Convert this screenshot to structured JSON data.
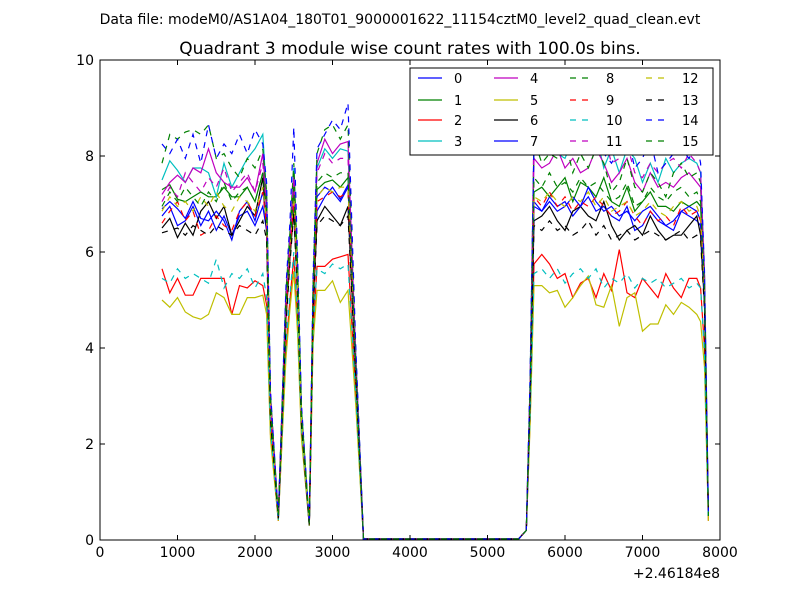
{
  "suptitle": "Data file: modeM0/AS1A04_180T01_9000001622_11154cztM0_level2_quad_clean.evt",
  "chart_data": {
    "type": "line",
    "title": "Quadrant 3 module wise count rates with 100.0s bins.",
    "xlabel": "",
    "ylabel": "",
    "x_offset_label": "+2.46184e8",
    "xlim": [
      0,
      8000
    ],
    "ylim": [
      0,
      10
    ],
    "x_ticks": [
      0,
      1000,
      2000,
      3000,
      4000,
      5000,
      6000,
      7000,
      8000
    ],
    "y_ticks": [
      0,
      2,
      4,
      6,
      8,
      10
    ],
    "grid": false,
    "legend_placement": "top-right",
    "legend_columns": 4,
    "x": [
      800,
      900,
      1000,
      1100,
      1200,
      1300,
      1400,
      1500,
      1600,
      1700,
      1800,
      1900,
      2000,
      2100,
      2150,
      2200,
      2300,
      2400,
      2450,
      2500,
      2550,
      2600,
      2700,
      2750,
      2800,
      2900,
      3000,
      3100,
      3200,
      3300,
      3400,
      5400,
      5500,
      5550,
      5600,
      5700,
      5800,
      5900,
      6000,
      6100,
      6200,
      6300,
      6400,
      6500,
      6600,
      6700,
      6800,
      6900,
      7000,
      7100,
      7200,
      7300,
      7400,
      7500,
      7600,
      7700,
      7750,
      7800,
      7850
    ],
    "series": [
      {
        "name": "0",
        "color": "#0000ff",
        "dash": "solid",
        "values": [
          6.75,
          6.95,
          6.55,
          6.65,
          6.95,
          6.55,
          6.85,
          6.45,
          6.75,
          6.35,
          6.75,
          6.85,
          6.55,
          6.95,
          6.45,
          2.6,
          0.45,
          4.7,
          5.95,
          7.1,
          5.25,
          2.5,
          0.3,
          4.9,
          6.85,
          7.15,
          7.35,
          7.1,
          7.4,
          3.5,
          0.02,
          0.02,
          0.2,
          3.0,
          6.95,
          6.85,
          7.15,
          6.95,
          7.05,
          6.75,
          6.95,
          7.15,
          6.85,
          6.95,
          6.75,
          6.65,
          6.95,
          6.45,
          6.55,
          6.85,
          6.65,
          6.55,
          6.45,
          6.85,
          6.75,
          6.65,
          6.55,
          5.0,
          0.5
        ]
      },
      {
        "name": "1",
        "color": "#008000",
        "dash": "solid",
        "values": [
          7.3,
          7.4,
          7.1,
          7.05,
          7.15,
          7.25,
          7.15,
          7.15,
          7.35,
          7.15,
          7.15,
          7.35,
          7.05,
          7.65,
          6.95,
          2.7,
          0.5,
          4.9,
          6.1,
          7.3,
          5.5,
          2.6,
          0.35,
          5.1,
          7.3,
          7.45,
          7.5,
          7.35,
          7.55,
          3.6,
          0.02,
          0.02,
          0.2,
          3.1,
          7.25,
          7.35,
          7.15,
          7.35,
          7.55,
          7.05,
          7.45,
          7.35,
          7.15,
          7.55,
          7.05,
          6.95,
          7.35,
          6.85,
          7.05,
          7.25,
          6.95,
          6.95,
          6.85,
          7.05,
          6.95,
          7.05,
          6.95,
          5.1,
          0.5
        ]
      },
      {
        "name": "2",
        "color": "#ff0000",
        "dash": "solid",
        "values": [
          5.65,
          5.15,
          5.45,
          5.1,
          5.1,
          5.45,
          5.45,
          5.45,
          5.45,
          4.7,
          5.3,
          5.25,
          5.4,
          5.3,
          4.9,
          2.2,
          0.4,
          4.0,
          5.0,
          5.9,
          4.5,
          2.2,
          0.3,
          4.3,
          5.7,
          5.7,
          5.85,
          5.9,
          5.95,
          3.0,
          0.02,
          0.02,
          0.2,
          2.5,
          5.75,
          5.95,
          5.75,
          5.45,
          5.55,
          5.05,
          5.35,
          5.45,
          5.05,
          5.55,
          5.2,
          6.05,
          5.15,
          5.05,
          5.45,
          5.25,
          5.05,
          5.55,
          5.25,
          5.05,
          5.45,
          5.45,
          5.25,
          4.0,
          0.4
        ]
      },
      {
        "name": "3",
        "color": "#00bfbf",
        "dash": "solid",
        "values": [
          7.5,
          7.9,
          7.7,
          7.45,
          7.75,
          7.75,
          7.65,
          7.15,
          7.85,
          7.35,
          7.65,
          7.95,
          8.15,
          8.45,
          7.15,
          3.0,
          0.5,
          5.1,
          6.3,
          7.75,
          5.6,
          2.7,
          0.35,
          5.3,
          7.75,
          8.15,
          7.95,
          8.15,
          8.1,
          3.8,
          0.02,
          0.02,
          0.2,
          3.3,
          8.35,
          8.55,
          8.25,
          8.05,
          7.95,
          8.35,
          8.15,
          8.35,
          8.45,
          7.75,
          8.15,
          7.65,
          8.15,
          7.95,
          7.45,
          7.85,
          7.45,
          7.95,
          7.65,
          7.85,
          7.95,
          7.85,
          7.65,
          5.5,
          0.6
        ]
      },
      {
        "name": "4",
        "color": "#bf00bf",
        "dash": "solid",
        "values": [
          7.2,
          7.45,
          7.6,
          7.45,
          7.75,
          7.65,
          8.15,
          7.65,
          7.45,
          7.35,
          7.35,
          7.55,
          7.25,
          8.05,
          6.95,
          3.0,
          0.5,
          5.0,
          6.2,
          7.6,
          5.5,
          2.6,
          0.35,
          5.2,
          7.85,
          8.35,
          8.05,
          8.25,
          8.3,
          3.8,
          0.02,
          0.02,
          0.2,
          3.2,
          7.95,
          7.75,
          7.85,
          8.15,
          7.75,
          7.95,
          7.65,
          7.75,
          8.15,
          7.85,
          7.45,
          7.65,
          7.95,
          7.45,
          7.25,
          7.65,
          7.35,
          7.45,
          7.35,
          7.55,
          7.65,
          7.45,
          7.35,
          5.3,
          0.5
        ]
      },
      {
        "name": "5",
        "color": "#bfbf00",
        "dash": "solid",
        "values": [
          5.0,
          4.85,
          5.05,
          4.75,
          4.65,
          4.6,
          4.7,
          5.15,
          5.05,
          4.7,
          4.7,
          5.05,
          5.05,
          5.1,
          4.7,
          2.1,
          0.4,
          3.8,
          4.8,
          5.6,
          4.3,
          2.1,
          0.3,
          4.1,
          5.2,
          5.2,
          5.4,
          4.95,
          5.2,
          2.8,
          0.02,
          0.02,
          0.2,
          2.4,
          5.3,
          5.3,
          5.15,
          5.2,
          4.85,
          5.05,
          5.3,
          5.5,
          4.9,
          4.85,
          5.3,
          4.45,
          5.05,
          5.15,
          4.35,
          4.5,
          4.5,
          4.9,
          4.7,
          4.95,
          4.85,
          4.7,
          4.55,
          3.6,
          0.4
        ]
      },
      {
        "name": "6",
        "color": "#000000",
        "dash": "solid",
        "values": [
          6.5,
          6.7,
          6.3,
          6.6,
          6.35,
          6.85,
          7.05,
          6.7,
          6.95,
          6.35,
          6.65,
          6.95,
          6.75,
          7.55,
          6.45,
          2.6,
          0.45,
          4.6,
          5.85,
          6.9,
          5.15,
          2.4,
          0.3,
          4.8,
          6.65,
          6.95,
          6.75,
          6.55,
          6.95,
          3.4,
          0.02,
          0.02,
          0.2,
          2.9,
          6.65,
          6.75,
          6.95,
          6.65,
          6.45,
          6.85,
          6.95,
          6.75,
          6.65,
          7.05,
          6.55,
          6.25,
          6.45,
          6.55,
          6.35,
          6.75,
          6.45,
          6.25,
          6.35,
          6.35,
          6.55,
          6.75,
          6.35,
          4.9,
          0.5
        ]
      },
      {
        "name": "7",
        "color": "#0000ff",
        "dash": "solid",
        "values": [
          6.9,
          7.05,
          6.9,
          6.7,
          7.05,
          6.7,
          6.65,
          6.85,
          6.65,
          6.25,
          6.85,
          7.05,
          6.65,
          7.25,
          6.65,
          2.7,
          0.45,
          4.8,
          6.0,
          7.1,
          5.3,
          2.5,
          0.3,
          5.0,
          7.15,
          7.35,
          7.25,
          7.05,
          7.35,
          3.5,
          0.02,
          0.02,
          0.2,
          3.0,
          7.05,
          6.85,
          7.05,
          6.85,
          6.95,
          7.15,
          6.95,
          7.35,
          7.05,
          6.85,
          6.95,
          6.75,
          6.85,
          6.65,
          6.85,
          6.95,
          6.75,
          6.55,
          6.65,
          6.85,
          6.95,
          6.85,
          6.65,
          5.0,
          0.5
        ]
      },
      {
        "name": "8",
        "color": "#008000",
        "dash": "dashed",
        "values": [
          7.85,
          8.45,
          8.35,
          8.5,
          8.55,
          8.45,
          8.65,
          7.95,
          8.05,
          7.75,
          7.55,
          7.95,
          7.75,
          8.15,
          7.25,
          3.0,
          0.5,
          5.2,
          6.4,
          7.85,
          5.7,
          2.7,
          0.35,
          5.3,
          8.05,
          8.55,
          8.65,
          8.35,
          8.65,
          3.9,
          0.02,
          0.02,
          0.2,
          3.3,
          8.35,
          7.85,
          8.05,
          7.95,
          8.35,
          7.65,
          8.05,
          7.75,
          8.15,
          7.85,
          7.25,
          7.45,
          7.95,
          7.35,
          7.25,
          7.65,
          7.45,
          7.15,
          7.65,
          7.85,
          7.55,
          7.65,
          7.45,
          5.5,
          0.5
        ]
      },
      {
        "name": "9",
        "color": "#ff0000",
        "dash": "dashed",
        "values": [
          6.6,
          6.85,
          7.05,
          6.65,
          6.85,
          6.35,
          6.45,
          6.75,
          6.55,
          6.45,
          6.85,
          7.05,
          6.75,
          7.25,
          6.55,
          2.6,
          0.45,
          4.7,
          5.95,
          7.05,
          5.25,
          2.5,
          0.3,
          4.9,
          7.05,
          7.15,
          7.25,
          7.15,
          7.25,
          3.5,
          0.02,
          0.02,
          0.2,
          3.0,
          7.15,
          6.95,
          7.25,
          6.95,
          7.15,
          6.85,
          7.05,
          6.95,
          7.15,
          6.95,
          6.75,
          6.85,
          7.05,
          6.75,
          6.55,
          6.85,
          6.65,
          6.75,
          6.55,
          6.95,
          6.75,
          6.85,
          6.65,
          5.0,
          0.5
        ]
      },
      {
        "name": "10",
        "color": "#00bfbf",
        "dash": "dashed",
        "values": [
          5.45,
          5.35,
          5.65,
          5.45,
          5.55,
          5.45,
          5.35,
          5.85,
          5.25,
          5.55,
          5.45,
          5.65,
          5.25,
          5.55,
          5.05,
          2.3,
          0.4,
          4.1,
          5.1,
          6.0,
          4.6,
          2.3,
          0.3,
          4.4,
          5.65,
          5.55,
          5.75,
          5.65,
          5.75,
          3.0,
          0.02,
          0.02,
          0.2,
          2.6,
          5.55,
          5.65,
          5.45,
          5.65,
          5.35,
          5.55,
          5.65,
          5.45,
          5.65,
          5.25,
          5.45,
          5.35,
          5.55,
          5.25,
          5.45,
          5.35,
          5.45,
          5.25,
          5.35,
          5.45,
          5.25,
          5.35,
          5.25,
          3.9,
          0.4
        ]
      },
      {
        "name": "11",
        "color": "#bf00bf",
        "dash": "dashed",
        "values": [
          7.05,
          7.35,
          7.15,
          7.65,
          7.45,
          7.25,
          7.55,
          7.35,
          7.75,
          7.25,
          7.45,
          7.65,
          7.25,
          7.85,
          6.95,
          2.9,
          0.5,
          5.0,
          6.2,
          7.55,
          5.5,
          2.6,
          0.35,
          5.2,
          7.65,
          8.05,
          7.85,
          7.95,
          7.95,
          3.7,
          0.02,
          0.02,
          0.2,
          3.2,
          8.65,
          8.45,
          8.55,
          8.25,
          8.45,
          8.15,
          8.35,
          8.05,
          8.25,
          8.45,
          7.85,
          7.95,
          8.25,
          7.65,
          7.55,
          7.85,
          7.65,
          7.85,
          7.95,
          7.75,
          8.05,
          7.85,
          7.65,
          5.5,
          0.6
        ]
      },
      {
        "name": "12",
        "color": "#bfbf00",
        "dash": "dashed",
        "values": [
          6.85,
          7.15,
          6.95,
          7.05,
          6.85,
          7.15,
          6.95,
          7.25,
          6.95,
          6.85,
          7.15,
          7.05,
          6.85,
          7.35,
          6.65,
          2.7,
          0.45,
          4.8,
          6.0,
          7.15,
          5.3,
          2.5,
          0.3,
          5.0,
          7.15,
          7.35,
          7.25,
          7.35,
          7.35,
          3.5,
          0.02,
          0.02,
          0.2,
          3.0,
          7.15,
          7.05,
          7.25,
          7.05,
          6.95,
          7.15,
          7.05,
          7.25,
          6.95,
          7.15,
          6.85,
          6.95,
          7.05,
          6.75,
          6.85,
          7.05,
          6.85,
          6.75,
          6.95,
          7.05,
          6.85,
          6.95,
          6.75,
          5.0,
          0.5
        ]
      },
      {
        "name": "13",
        "color": "#000000",
        "dash": "dashed",
        "values": [
          6.4,
          6.45,
          6.5,
          6.35,
          6.55,
          6.45,
          6.35,
          6.55,
          6.45,
          6.35,
          6.55,
          6.45,
          6.35,
          6.65,
          6.25,
          2.5,
          0.45,
          4.5,
          5.75,
          6.8,
          5.05,
          2.4,
          0.3,
          4.7,
          6.55,
          6.75,
          6.65,
          6.55,
          6.75,
          3.4,
          0.02,
          0.02,
          0.2,
          2.9,
          6.55,
          6.45,
          6.65,
          6.45,
          6.55,
          6.35,
          6.45,
          6.65,
          6.35,
          6.55,
          6.25,
          6.35,
          6.45,
          6.25,
          6.35,
          6.45,
          6.35,
          6.25,
          6.35,
          6.45,
          6.25,
          6.35,
          6.25,
          4.8,
          0.5
        ]
      },
      {
        "name": "14",
        "color": "#0000ff",
        "dash": "dashed",
        "values": [
          8.25,
          8.05,
          8.35,
          7.95,
          8.45,
          7.85,
          8.65,
          7.95,
          8.25,
          8.05,
          8.45,
          8.05,
          8.55,
          8.25,
          7.45,
          3.1,
          0.5,
          5.3,
          6.6,
          8.6,
          5.9,
          2.8,
          0.35,
          5.5,
          8.15,
          8.45,
          8.75,
          8.55,
          9.1,
          4.0,
          0.02,
          0.02,
          0.2,
          3.4,
          8.25,
          8.55,
          8.15,
          8.35,
          8.65,
          8.05,
          8.45,
          8.15,
          8.55,
          8.05,
          7.85,
          8.15,
          8.45,
          7.75,
          7.95,
          8.35,
          7.65,
          7.85,
          8.05,
          8.15,
          7.95,
          8.25,
          7.85,
          5.6,
          0.6
        ]
      },
      {
        "name": "15",
        "color": "#008000",
        "dash": "dashed",
        "values": [
          6.95,
          7.25,
          7.05,
          7.35,
          7.15,
          6.95,
          7.25,
          7.05,
          7.45,
          7.05,
          7.25,
          7.35,
          7.05,
          7.65,
          6.85,
          2.8,
          0.5,
          4.9,
          6.1,
          7.35,
          5.4,
          2.6,
          0.35,
          5.1,
          7.45,
          7.65,
          7.55,
          7.65,
          7.65,
          3.6,
          0.02,
          0.02,
          0.2,
          3.1,
          7.55,
          7.35,
          7.65,
          7.35,
          7.45,
          7.25,
          7.55,
          7.35,
          7.45,
          7.25,
          7.05,
          7.15,
          7.45,
          6.95,
          7.05,
          7.35,
          7.15,
          7.05,
          7.25,
          7.35,
          7.15,
          7.25,
          7.05,
          5.2,
          0.5
        ]
      }
    ]
  }
}
